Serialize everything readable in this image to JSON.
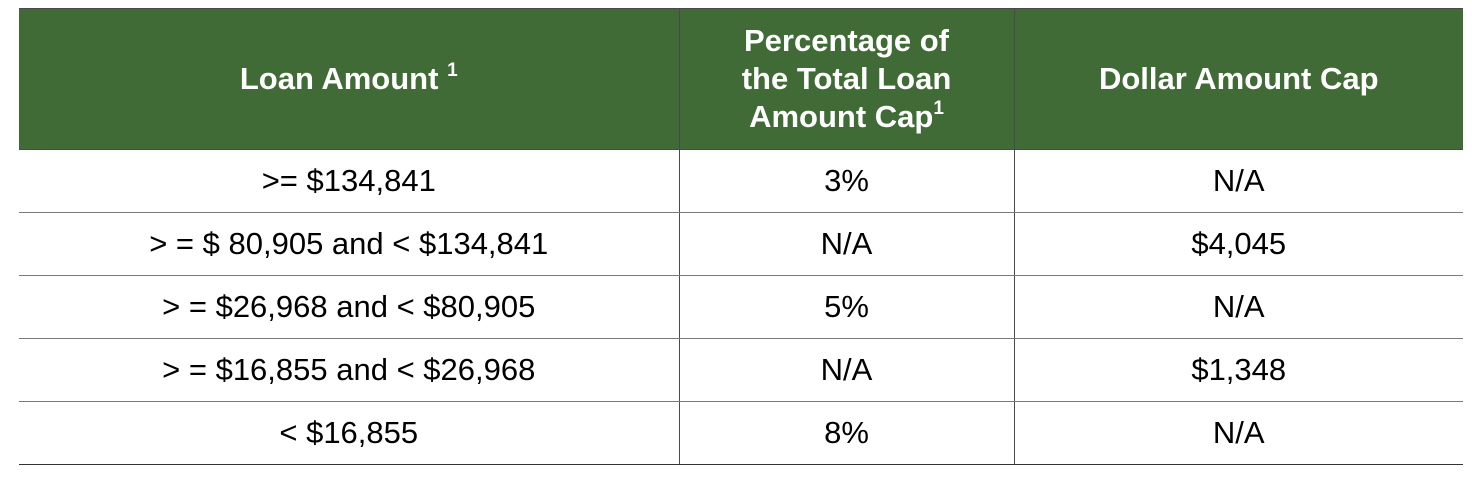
{
  "table": {
    "headers": [
      {
        "text": "Loan Amount ",
        "sup": "1"
      },
      {
        "text": "Percentage of the Total Loan Amount Cap",
        "sup": "1"
      },
      {
        "text": "Dollar Amount Cap",
        "sup": ""
      }
    ],
    "rows": [
      [
        ">= $134,841",
        "3%",
        "N/A"
      ],
      [
        "> = $ 80,905 and < $134,841",
        "N/A",
        "$4,045"
      ],
      [
        "> = $26,968 and < $80,905",
        "5%",
        "N/A"
      ],
      [
        "> = $16,855 and < $26,968",
        "N/A",
        "$1,348"
      ],
      [
        "< $16,855",
        "8%",
        "N/A"
      ]
    ]
  },
  "colors": {
    "header_bg": "#416b36",
    "header_text": "#ffffff",
    "border": "#4a4a4a"
  }
}
